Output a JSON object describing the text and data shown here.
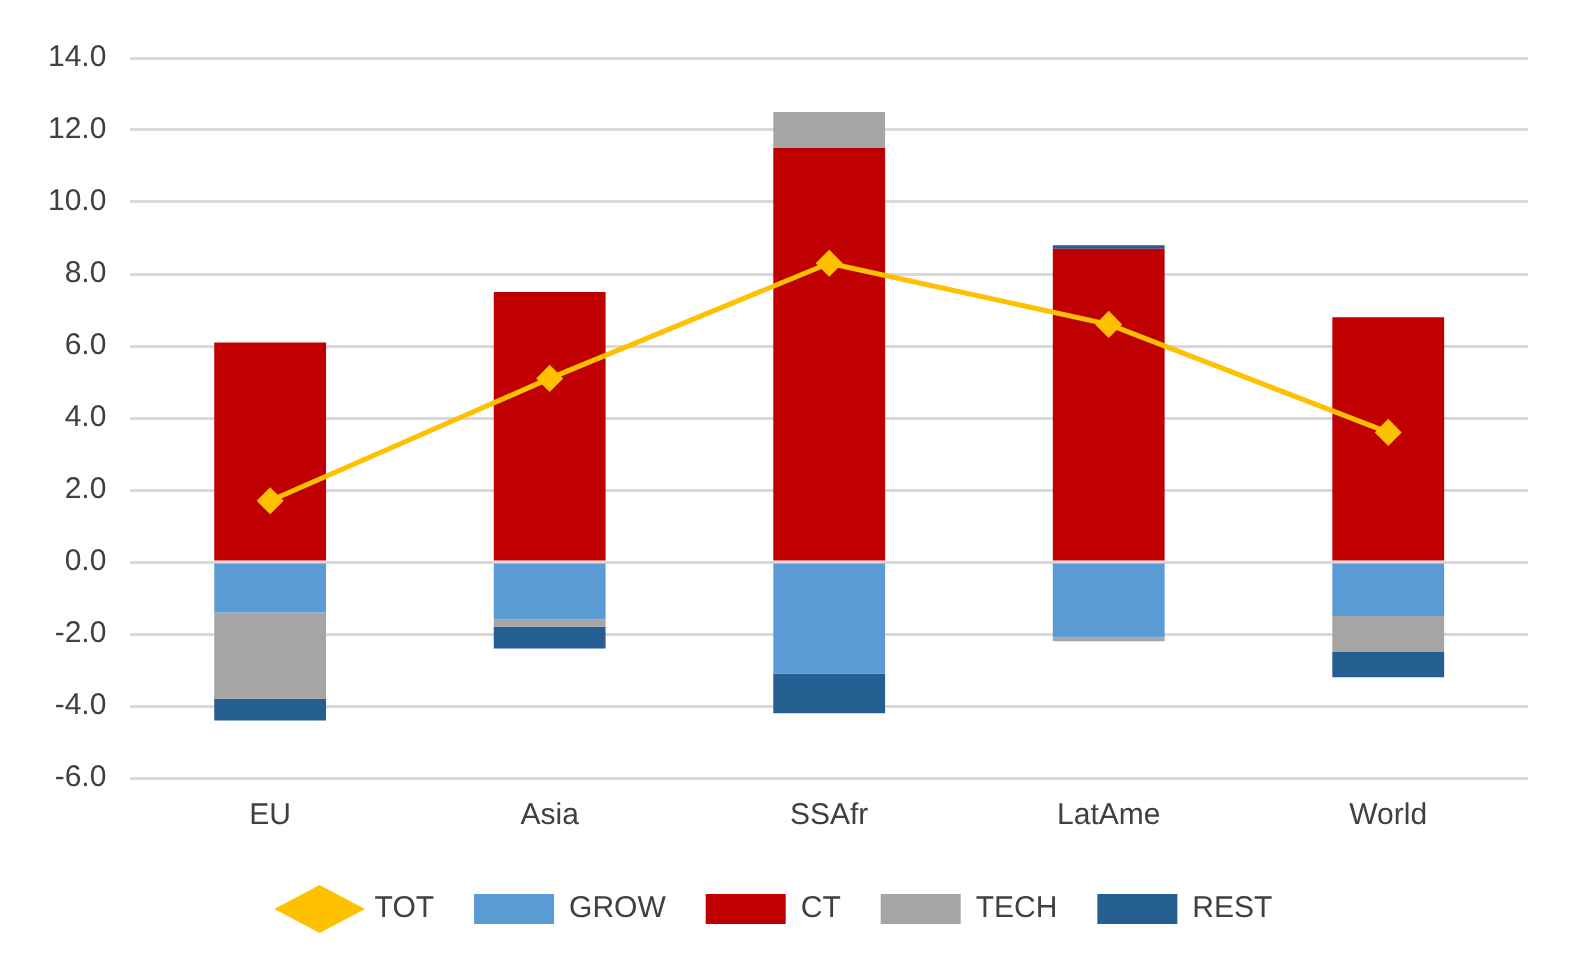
{
  "chart_data": {
    "type": "bar",
    "stacked": true,
    "categories": [
      "EU",
      "Asia",
      "SSAfr",
      "LatAme",
      "World"
    ],
    "series": [
      {
        "name": "GROW",
        "color": "#5b9bd5",
        "values": [
          -1.4,
          -1.6,
          -3.1,
          -2.1,
          -1.5
        ]
      },
      {
        "name": "CT",
        "color": "#c00000",
        "values": [
          6.1,
          7.5,
          11.5,
          8.7,
          6.8
        ]
      },
      {
        "name": "TECH",
        "color": "#a5a5a5",
        "values": [
          -2.4,
          -0.2,
          1.0,
          -0.1,
          -1.0
        ]
      },
      {
        "name": "REST",
        "color": "#255e91",
        "values": [
          -0.6,
          -0.6,
          -1.1,
          0.1,
          -0.7
        ]
      },
      {
        "name": "TOT",
        "type": "line",
        "color": "#ffc000",
        "marker": "diamond",
        "values": [
          1.7,
          5.1,
          8.3,
          6.6,
          3.6
        ]
      }
    ],
    "ylim": [
      -6,
      14
    ],
    "yticks": [
      {
        "value": -6,
        "label": "-6.0"
      },
      {
        "value": -4,
        "label": "-4.0"
      },
      {
        "value": -2,
        "label": "-2.0"
      },
      {
        "value": 0,
        "label": "0.0"
      },
      {
        "value": 2,
        "label": "2.0"
      },
      {
        "value": 4,
        "label": "4.0"
      },
      {
        "value": 6,
        "label": "6.0"
      },
      {
        "value": 8,
        "label": "8.0"
      },
      {
        "value": 10,
        "label": "10.0"
      },
      {
        "value": 12,
        "label": "12.0"
      },
      {
        "value": 14,
        "label": "14.0"
      }
    ],
    "grid": "y",
    "legend": "bottom"
  }
}
